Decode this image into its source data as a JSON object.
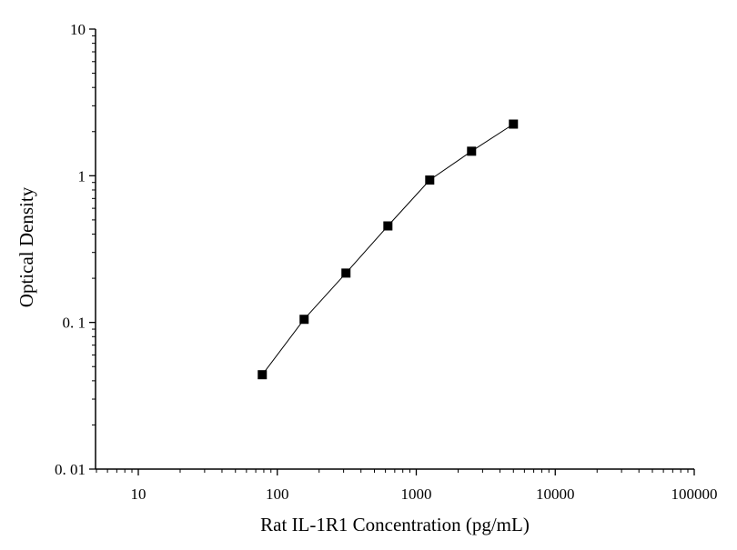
{
  "chart_data": {
    "type": "scatter",
    "title": "",
    "xlabel": "Rat IL-1R1 Concentration (pg/mL)",
    "ylabel": "Optical Density",
    "x_scale": "log",
    "y_scale": "log",
    "xlim": [
      5,
      100000
    ],
    "ylim": [
      0.01,
      10
    ],
    "x_ticks": [
      10,
      100,
      1000,
      10000,
      100000
    ],
    "x_tick_labels": [
      "10",
      "100",
      "1000",
      "10000",
      "100000"
    ],
    "y_ticks": [
      0.01,
      0.1,
      1,
      10
    ],
    "y_tick_labels": [
      "0. 01",
      "0. 1",
      "1",
      "10"
    ],
    "grid": false,
    "legend": "none",
    "series": [
      {
        "x": [
          78,
          156,
          312,
          625,
          1250,
          2500,
          5000
        ],
        "y": [
          0.044,
          0.105,
          0.217,
          0.455,
          0.935,
          1.47,
          2.25
        ],
        "marker": "square",
        "color": "#000000",
        "line": "connected"
      }
    ]
  }
}
